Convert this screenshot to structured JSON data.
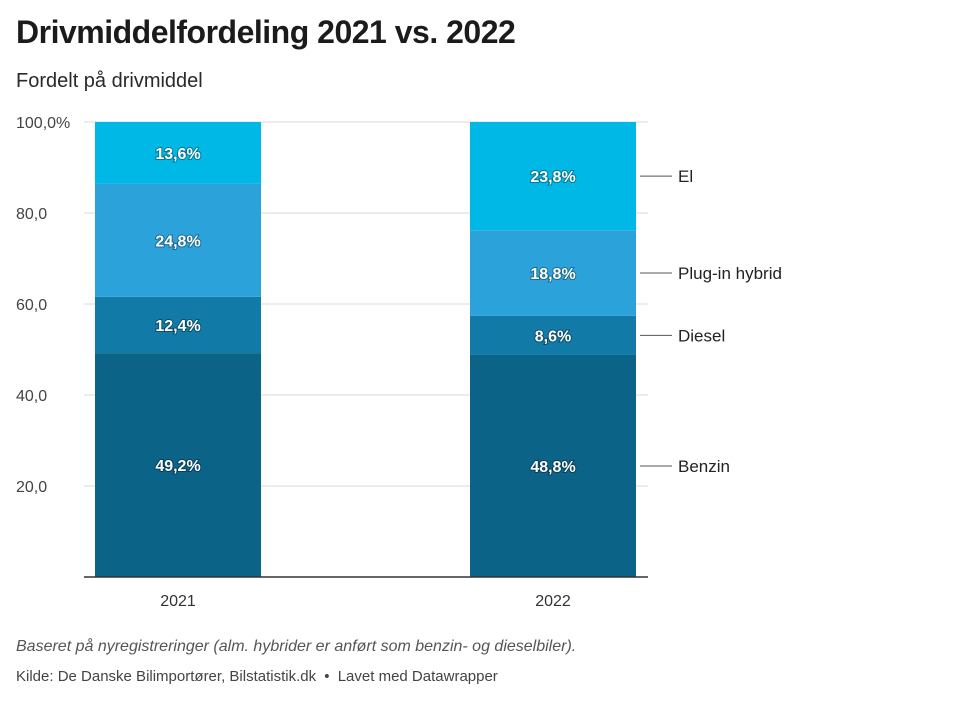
{
  "title": "Drivmiddelfordeling 2021 vs. 2022",
  "subtitle": "Fordelt på drivmiddel",
  "notes": "Baseret på nyregistreringer (alm. hybrider er anført som benzin- og dieselbiler).",
  "source": {
    "kilde": "Kilde: De Danske Bilimportører, Bilstatistik.dk",
    "separator": "•",
    "credit": "Lavet med Datawrapper"
  },
  "chart_data": {
    "type": "bar",
    "stacked": true,
    "categories": [
      "2021",
      "2022"
    ],
    "series": [
      {
        "name": "Benzin",
        "values": [
          49.2,
          48.8
        ],
        "labels": [
          "49,2%",
          "48,8%"
        ],
        "color": "#0b6388"
      },
      {
        "name": "Diesel",
        "values": [
          12.4,
          8.6
        ],
        "labels": [
          "12,4%",
          "8,6%"
        ],
        "color": "#117aa6"
      },
      {
        "name": "Plug-in hybrid",
        "values": [
          24.8,
          18.8
        ],
        "labels": [
          "24,8%",
          "18,8%"
        ],
        "color": "#2ba3da"
      },
      {
        "name": "El",
        "values": [
          13.6,
          23.8
        ],
        "labels": [
          "13,6%",
          "23,8%"
        ],
        "color": "#00b8e6"
      }
    ],
    "ylim": [
      0,
      100
    ],
    "yticks": [
      20,
      40,
      60,
      80,
      100
    ],
    "ytick_labels": [
      "20,0",
      "40,0",
      "60,0",
      "80,0",
      "100,0%"
    ],
    "grid": true,
    "legend": "right, labels aligned to last bar"
  }
}
